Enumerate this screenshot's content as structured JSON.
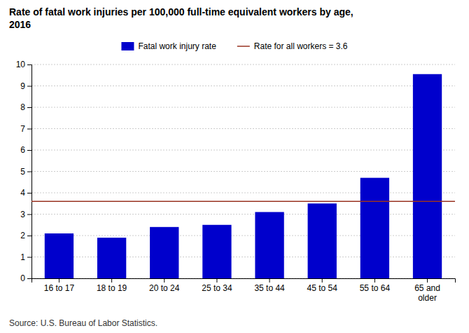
{
  "chart_data": {
    "type": "bar",
    "title": "Rate of fatal work injuries per 100,000 full-time equivalent workers by age,\n2016",
    "categories": [
      "16 to 17",
      "18 to 19",
      "20 to 24",
      "25 to 34",
      "35 to 44",
      "45 to 54",
      "55 to 64",
      "65 and\nolder"
    ],
    "series": [
      {
        "name": "Fatal work injury rate",
        "color": "#0000CC",
        "values": [
          2.1,
          1.9,
          2.4,
          2.5,
          3.1,
          3.5,
          4.7,
          9.55
        ]
      }
    ],
    "reference_line": {
      "name": "Rate for all workers = 3.6",
      "value": 3.6,
      "color": "#993322"
    },
    "ylim": [
      0,
      10
    ],
    "yticks": [
      0,
      1,
      2,
      3,
      4,
      5,
      6,
      7,
      8,
      9,
      10
    ],
    "grid": true,
    "legend": "top",
    "source": "Source: U.S. Bureau of Labor Statistics."
  }
}
